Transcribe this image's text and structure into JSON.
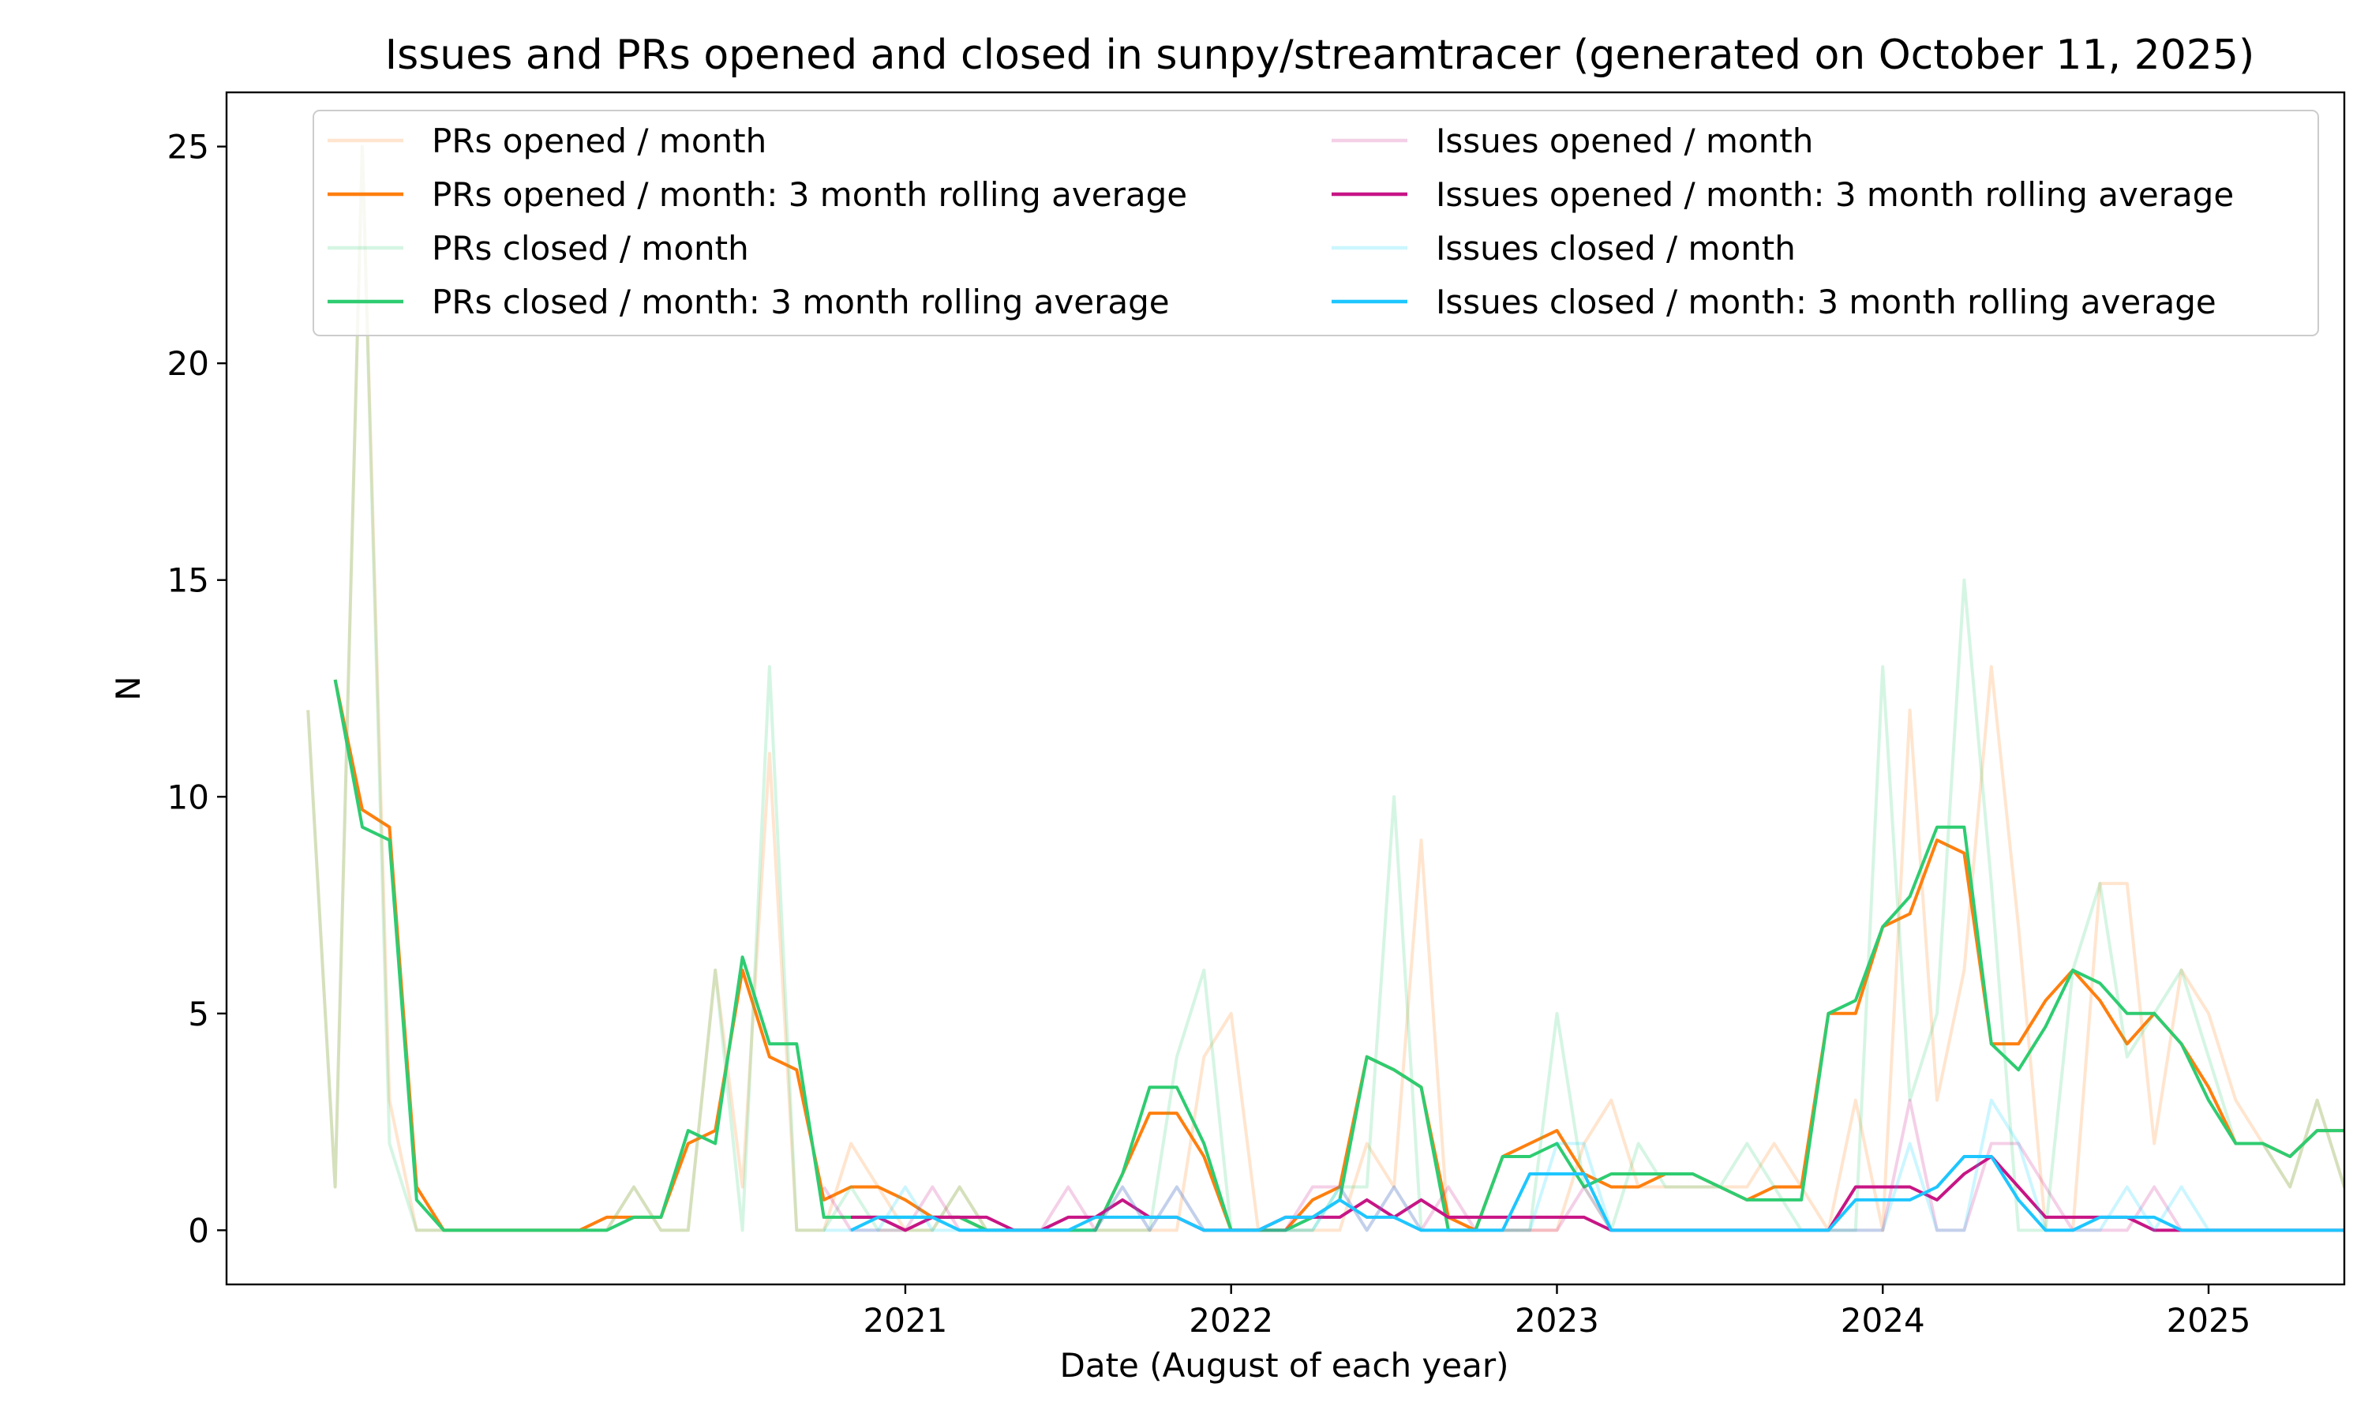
{
  "chart_data": {
    "type": "line",
    "title": "Issues and PRs opened and closed in sunpy/streamtracer (generated on October 11, 2025)",
    "xlabel": "Date (August of each year)",
    "ylabel": "N",
    "x_start": "2019-03",
    "xlim": [
      "2018-12",
      "2025-06"
    ],
    "ylim": [
      -1.25,
      26.25
    ],
    "x_ticks": [
      {
        "date": "2021-01",
        "label": "2021"
      },
      {
        "date": "2022-01",
        "label": "2022"
      },
      {
        "date": "2023-01",
        "label": "2023"
      },
      {
        "date": "2024-01",
        "label": "2024"
      },
      {
        "date": "2025-01",
        "label": "2025"
      }
    ],
    "y_ticks": [
      0,
      5,
      10,
      15,
      20,
      25
    ],
    "legend_position": "top",
    "series": [
      {
        "name": "PRs opened / month",
        "color": "#ff7f0e",
        "alpha": 0.2,
        "values": [
          12,
          1,
          25,
          3,
          0,
          0,
          0,
          0,
          0,
          0,
          0,
          0,
          1,
          0,
          0,
          6,
          1,
          11,
          0,
          0,
          2,
          1,
          0,
          0,
          1,
          0,
          0,
          0,
          0,
          0,
          0,
          0,
          0,
          4,
          5,
          0,
          0,
          0,
          0,
          2,
          1,
          9,
          0,
          0,
          0,
          0,
          0,
          2,
          3,
          1,
          1,
          1,
          1,
          1,
          2,
          1,
          0,
          3,
          0,
          12,
          3,
          6,
          13,
          7,
          0,
          0,
          8,
          8,
          2,
          6,
          5,
          3,
          2,
          1,
          3,
          1,
          3,
          3
        ]
      },
      {
        "name": "PRs opened / month: 3 month rolling average",
        "color": "#ff7f0e",
        "alpha": 1,
        "values": [
          null,
          12.7,
          9.7,
          9.3,
          1,
          0,
          0,
          0,
          0,
          0,
          0,
          0.3,
          0.3,
          0.3,
          2,
          2.3,
          6,
          4,
          3.7,
          0.7,
          1,
          1,
          0.7,
          0.3,
          0.3,
          0,
          0,
          0,
          0,
          0,
          1.3,
          2.7,
          2.7,
          1.7,
          0,
          0,
          0,
          0.7,
          1,
          4,
          3.7,
          3.3,
          0.3,
          0,
          1.7,
          2,
          2.3,
          1.3,
          1,
          1,
          1.3,
          1.3,
          1,
          0.7,
          1,
          1,
          5,
          5,
          7,
          7.3,
          9,
          8.7,
          4.3,
          4.3,
          5.3,
          6,
          5.3,
          4.3,
          5,
          4.3,
          3.3,
          2,
          2,
          1.7,
          2.3,
          2.3
        ]
      },
      {
        "name": "PRs closed / month",
        "color": "#2ecc71",
        "alpha": 0.2,
        "values": [
          12,
          1,
          25,
          2,
          0,
          0,
          0,
          0,
          0,
          0,
          0,
          0,
          1,
          0,
          0,
          6,
          0,
          13,
          0,
          0,
          1,
          0,
          0,
          0,
          1,
          0,
          0,
          0,
          0,
          0,
          0,
          0,
          4,
          6,
          0,
          0,
          0,
          0,
          1,
          1,
          10,
          0,
          0,
          0,
          0,
          0,
          5,
          1,
          0,
          2,
          1,
          1,
          1,
          2,
          1,
          0,
          0,
          0,
          13,
          3,
          5,
          15,
          8,
          0,
          0,
          6,
          8,
          4,
          5,
          6,
          4,
          2,
          2,
          1,
          3,
          1,
          3,
          3
        ]
      },
      {
        "name": "PRs closed / month: 3 month rolling average",
        "color": "#2ecc71",
        "alpha": 1,
        "values": [
          null,
          12.7,
          9.3,
          9,
          0.7,
          0,
          0,
          0,
          0,
          0,
          0,
          0,
          0.3,
          0.3,
          2.3,
          2,
          6.3,
          4.3,
          4.3,
          0.3,
          0.3,
          0.3,
          0.3,
          0.3,
          0.3,
          0,
          0,
          0,
          0,
          0,
          1.3,
          3.3,
          3.3,
          2,
          0,
          0,
          0,
          0.3,
          0.7,
          4,
          3.7,
          3.3,
          0,
          0,
          1.7,
          1.7,
          2,
          1,
          1.3,
          1.3,
          1.3,
          1.3,
          1,
          0.7,
          0.7,
          0.7,
          5,
          5.3,
          7,
          7.7,
          9.3,
          9.3,
          4.3,
          3.7,
          4.7,
          6,
          5.7,
          5,
          5,
          4.3,
          3,
          2,
          2,
          1.7,
          2.3,
          2.3
        ]
      },
      {
        "name": "Issues opened / month",
        "color": "#c71585",
        "alpha": 0.2,
        "values": [
          null,
          null,
          null,
          null,
          null,
          null,
          null,
          null,
          null,
          null,
          null,
          null,
          null,
          null,
          null,
          null,
          null,
          null,
          null,
          1,
          0,
          0,
          0,
          1,
          0,
          0,
          0,
          0,
          1,
          0,
          1,
          0,
          1,
          0,
          0,
          0,
          0,
          1,
          1,
          0,
          1,
          0,
          1,
          0,
          0,
          0,
          0,
          1,
          0,
          0,
          0,
          0,
          0,
          0,
          0,
          0,
          0,
          0,
          0,
          3,
          0,
          0,
          2,
          2,
          1,
          0,
          0,
          0,
          1,
          0,
          0,
          0,
          0,
          0,
          0,
          0,
          0,
          0
        ]
      },
      {
        "name": "Issues opened / month: 3 month rolling average",
        "color": "#c71585",
        "alpha": 1,
        "values": [
          null,
          null,
          null,
          null,
          null,
          null,
          null,
          null,
          null,
          null,
          null,
          null,
          null,
          null,
          null,
          null,
          null,
          null,
          null,
          null,
          0.3,
          0.3,
          0,
          0.3,
          0.3,
          0.3,
          0,
          0,
          0.3,
          0.3,
          0.7,
          0.3,
          0.3,
          0,
          0,
          0,
          0.3,
          0.3,
          0.3,
          0.7,
          0.3,
          0.7,
          0.3,
          0.3,
          0.3,
          0.3,
          0.3,
          0.3,
          0,
          0,
          0,
          0,
          0,
          0,
          0,
          0,
          0,
          1,
          1,
          1,
          0.7,
          1.3,
          1.7,
          1,
          0.3,
          0.3,
          0.3,
          0.3,
          0,
          0,
          0,
          0,
          0,
          0,
          0,
          0
        ]
      },
      {
        "name": "Issues closed / month",
        "color": "#00d2ff",
        "alpha": 0.2,
        "values": [
          null,
          null,
          null,
          null,
          null,
          null,
          null,
          null,
          null,
          null,
          null,
          null,
          null,
          null,
          null,
          null,
          null,
          null,
          null,
          0,
          0,
          0,
          1,
          0,
          0,
          0,
          0,
          0,
          0,
          0,
          1,
          0,
          1,
          0,
          0,
          0,
          0,
          0,
          1,
          0,
          1,
          0,
          0,
          0,
          0,
          0,
          2,
          2,
          0,
          0,
          0,
          0,
          0,
          0,
          0,
          0,
          0,
          0,
          0,
          2,
          0,
          0,
          3,
          2,
          0,
          0,
          0,
          1,
          0,
          1,
          0,
          0,
          0,
          0,
          0,
          0,
          0,
          0
        ]
      },
      {
        "name": "Issues closed / month: 3 month rolling average",
        "color": "#1ec6ff",
        "alpha": 1,
        "values": [
          null,
          null,
          null,
          null,
          null,
          null,
          null,
          null,
          null,
          null,
          null,
          null,
          null,
          null,
          null,
          null,
          null,
          null,
          null,
          null,
          0,
          0.3,
          0.3,
          0.3,
          0,
          0,
          0,
          0,
          0,
          0.3,
          0.3,
          0.3,
          0.3,
          0,
          0,
          0,
          0.3,
          0.3,
          0.7,
          0.3,
          0.3,
          0,
          0,
          0,
          0,
          1.3,
          1.3,
          1.3,
          0,
          0,
          0,
          0,
          0,
          0,
          0,
          0,
          0,
          0.7,
          0.7,
          0.7,
          1,
          1.7,
          1.7,
          0.7,
          0,
          0,
          0.3,
          0.3,
          0.3,
          0,
          0,
          0,
          0,
          0,
          0,
          0
        ]
      }
    ]
  }
}
